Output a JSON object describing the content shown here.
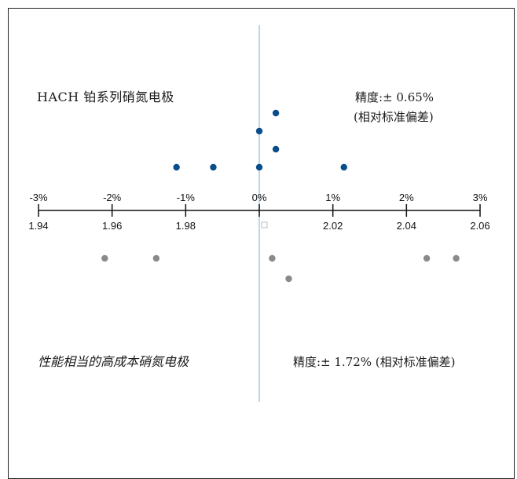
{
  "chart_data": {
    "type": "scatter",
    "top_axis": {
      "ticks": [
        -3,
        -2,
        -1,
        0,
        1,
        2,
        3
      ],
      "tick_labels": [
        "-3%",
        "-2%",
        "-1%",
        "0%",
        "1%",
        "2%",
        "3%"
      ]
    },
    "bottom_axis": {
      "ticks": [
        1.94,
        1.96,
        1.98,
        2.0,
        2.02,
        2.04,
        2.06
      ],
      "tick_labels": [
        "1.94",
        "1.96",
        "1.98",
        "",
        "2.02",
        "2.04",
        "2.06"
      ],
      "range": [
        1.94,
        2.06
      ]
    },
    "reference_line": 2.0,
    "series": [
      {
        "name": "HACH 铂系列硝氮电极",
        "color": "#0a4d8c",
        "points": [
          {
            "x": 1.9775,
            "level": 0
          },
          {
            "x": 1.9875,
            "level": 0
          },
          {
            "x": 2.0,
            "level": 0
          },
          {
            "x": 2.023,
            "level": 0
          },
          {
            "x": 2.0045,
            "level": 1
          },
          {
            "x": 2.0,
            "level": 2
          },
          {
            "x": 2.0045,
            "level": 3
          }
        ]
      },
      {
        "name": "性能相当的高成本硝氮电极",
        "color": "#8a8a8a",
        "points": [
          {
            "x": 1.958,
            "level": 0
          },
          {
            "x": 1.972,
            "level": 0
          },
          {
            "x": 2.0035,
            "level": 0
          },
          {
            "x": 2.0455,
            "level": 0
          },
          {
            "x": 2.0535,
            "level": 0
          },
          {
            "x": 2.008,
            "level": 1
          }
        ]
      }
    ]
  },
  "labels": {
    "top_left": "HACH 铂系列硝氮电极",
    "top_right_line1": "精度:± 0.65%",
    "top_right_line2": "(相对标准偏差)",
    "bottom_left": "性能相当的高成本硝氮电极",
    "bottom_right": "精度:± 1.72% (相对标准偏差)"
  },
  "colors": {
    "reference_line": "#9ccfe6",
    "axis": "#111111",
    "center_marker": "#bbbbbb"
  }
}
